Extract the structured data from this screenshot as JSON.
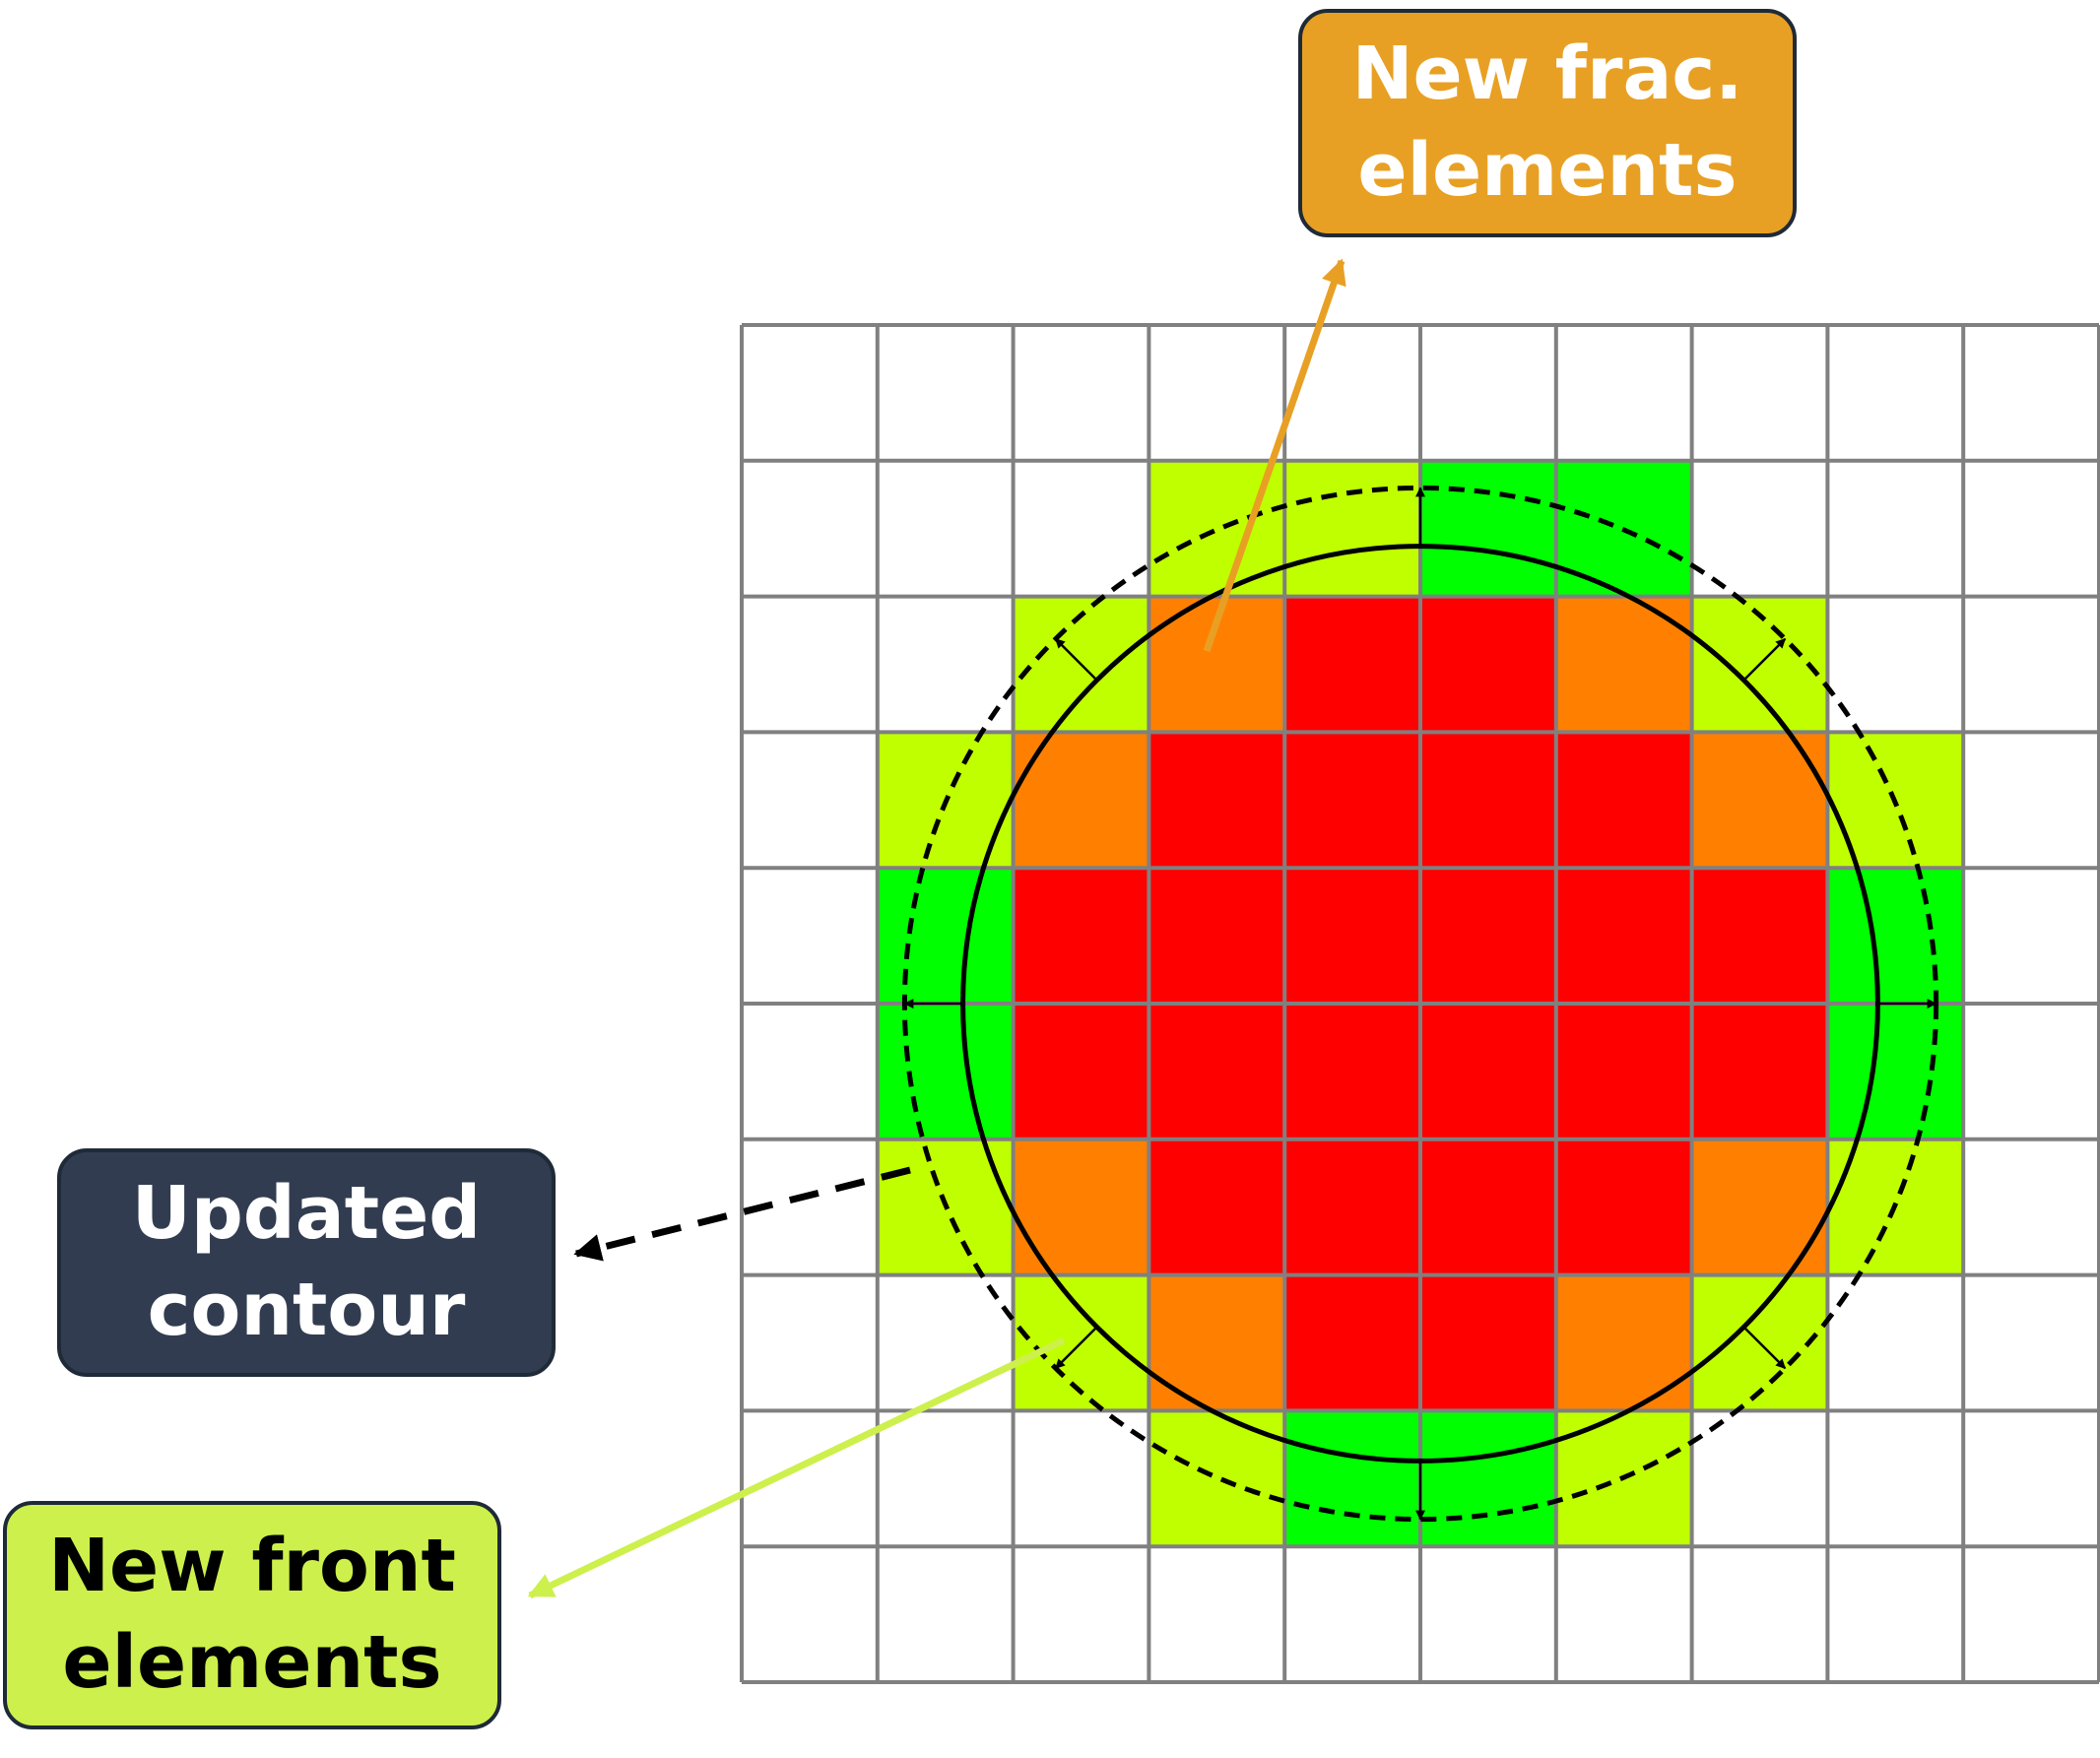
{
  "labels": {
    "new_frac_elements": "New frac.\nelements",
    "updated_contour": "Updated\ncontour",
    "new_front_elements": "New front\nelements"
  },
  "grid": {
    "columns": 10,
    "rows": 10,
    "cells": [
      "0000000000",
      "0001122000",
      "0013443100",
      "0134444310",
      "0244444420",
      "0244444420",
      "0134444310",
      "0013443100",
      "0001221000",
      "0000000000"
    ],
    "legend_codes": {
      "0": "empty",
      "1": "new-front",
      "2": "front",
      "3": "new-frac",
      "4": "fractured"
    }
  },
  "colors": {
    "empty": "#ffffff",
    "new-front": "#c0ff00",
    "front": "#00ff00",
    "new-frac": "#ff8000",
    "fractured": "#ff0000",
    "grid_line": "#808080",
    "contour": "#000000",
    "frac_box": "#e8a024",
    "contour_box": "#323c51",
    "front_box": "#cdf04c",
    "frac_arrow": "#e8a024",
    "front_arrow": "#cdf04c"
  },
  "icons": {
    "contour_arrows": "arrow-icon",
    "callout_arrows": "arrow-icon"
  }
}
